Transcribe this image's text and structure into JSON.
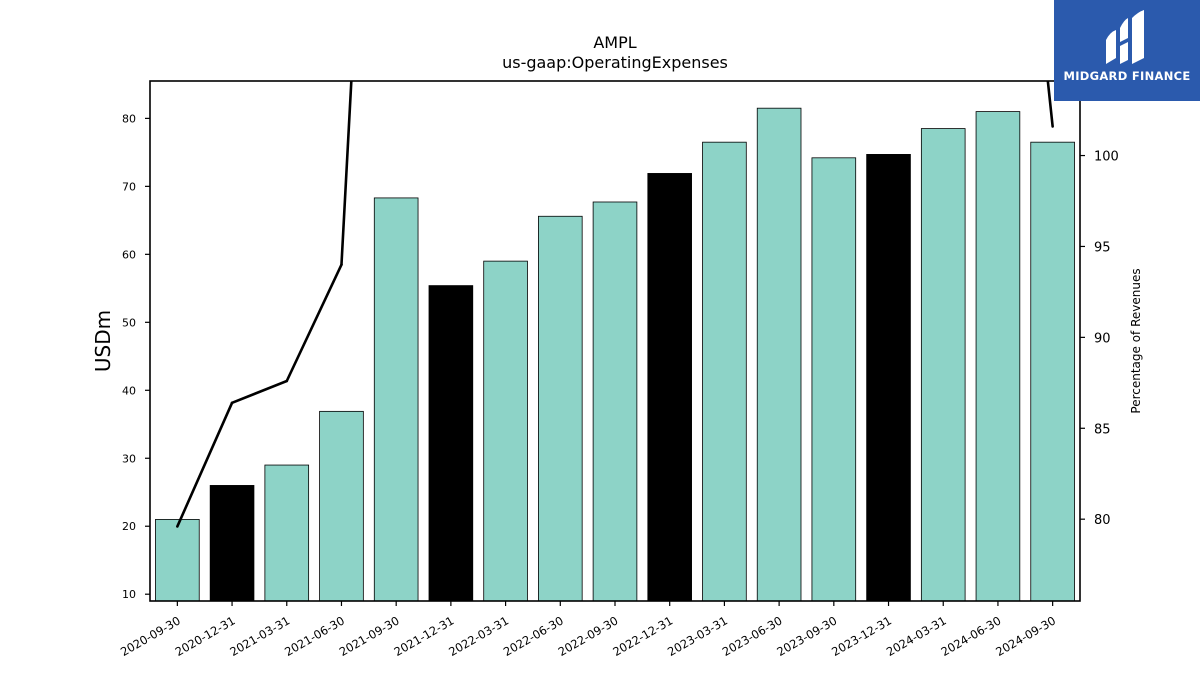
{
  "brand": {
    "name": "MIDGARD FINANCE",
    "logo_icon": "midgard-finance-logo-icon",
    "bg_color": "#2b5aad"
  },
  "chart_data": {
    "type": "bar",
    "title": "AMPL",
    "subtitle": "us-gaap:OperatingExpenses",
    "ylabel": "USDm",
    "y2label": "Percentage of Revenues",
    "categories": [
      "2020-09-30",
      "2020-12-31",
      "2021-03-31",
      "2021-06-30",
      "2021-09-30",
      "2021-12-31",
      "2022-03-31",
      "2022-06-30",
      "2022-09-30",
      "2022-12-31",
      "2023-03-31",
      "2023-06-30",
      "2023-09-30",
      "2023-12-31",
      "2024-03-31",
      "2024-06-30",
      "2024-09-30"
    ],
    "values": [
      21.0,
      26.0,
      29.0,
      36.9,
      68.3,
      55.4,
      59.0,
      65.6,
      67.7,
      71.9,
      76.5,
      81.5,
      74.2,
      74.7,
      78.5,
      81.0,
      76.5
    ],
    "bar_colors": [
      "#8dd3c7",
      "#000000",
      "#8dd3c7",
      "#8dd3c7",
      "#8dd3c7",
      "#000000",
      "#8dd3c7",
      "#8dd3c7",
      "#8dd3c7",
      "#000000",
      "#8dd3c7",
      "#8dd3c7",
      "#8dd3c7",
      "#000000",
      "#8dd3c7",
      "#8dd3c7",
      "#8dd3c7"
    ],
    "line_series": {
      "name": "Percentage of Revenues",
      "axis": "right",
      "color": "#000000",
      "values": [
        79.6,
        86.4,
        87.6,
        94.0,
        150.0,
        null,
        null,
        null,
        null,
        null,
        null,
        null,
        null,
        null,
        null,
        130.0,
        101.6
      ]
    },
    "ylim": [
      9,
      85.5
    ],
    "yticks": [
      10,
      20,
      30,
      40,
      50,
      60,
      70,
      80
    ],
    "y2lim": [
      75.5,
      104.1
    ],
    "y2ticks": [
      80,
      85,
      90,
      95,
      100
    ],
    "grid": false,
    "legend": "none"
  }
}
